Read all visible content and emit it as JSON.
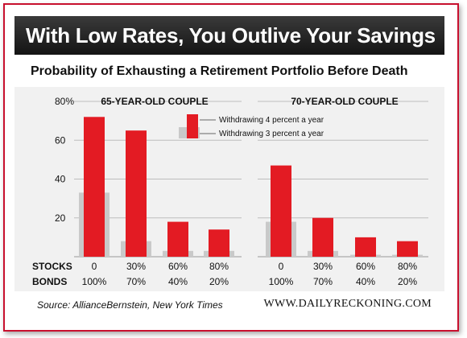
{
  "header": {
    "title": "With Low Rates, You Outlive Your Savings"
  },
  "subtitle": "Probability of Exhausting a Retirement Portfolio Before Death",
  "footer": {
    "source": "Source: AllianceBernstein, New York Times",
    "site": "WWW.DAILYRECKONING.COM"
  },
  "colors": {
    "withdraw4": "#e31b23",
    "withdraw3": "#c9c9c9",
    "frame": "#c8102e"
  },
  "chart_data": [
    {
      "type": "bar",
      "title": "65-YEAR-OLD COUPLE",
      "row_labels": [
        "STOCKS",
        "BONDS"
      ],
      "categories": [
        "0",
        "30%",
        "60%",
        "80%"
      ],
      "categories_bonds": [
        "100%",
        "70%",
        "40%",
        "20%"
      ],
      "series": [
        {
          "name": "Withdrawing 4 percent a year",
          "values": [
            72,
            65,
            18,
            14
          ]
        },
        {
          "name": "Withdrawing 3 percent a year",
          "values": [
            33,
            8,
            3,
            3
          ]
        }
      ],
      "ylim": [
        0,
        80
      ],
      "yticks": [
        {
          "value": 20,
          "label": "20"
        },
        {
          "value": 40,
          "label": "40"
        },
        {
          "value": 60,
          "label": "60"
        },
        {
          "value": 80,
          "label": "80%"
        }
      ],
      "grid": true,
      "legend": "top-right"
    },
    {
      "type": "bar",
      "title": "70-YEAR-OLD COUPLE",
      "categories": [
        "0",
        "30%",
        "60%",
        "80%"
      ],
      "categories_bonds": [
        "100%",
        "70%",
        "40%",
        "20%"
      ],
      "series": [
        {
          "name": "Withdrawing 4 percent a year",
          "values": [
            47,
            20,
            10,
            8
          ]
        },
        {
          "name": "Withdrawing 3 percent a year",
          "values": [
            18,
            3,
            1,
            1
          ]
        }
      ],
      "ylim": [
        0,
        80
      ],
      "grid": true
    }
  ]
}
